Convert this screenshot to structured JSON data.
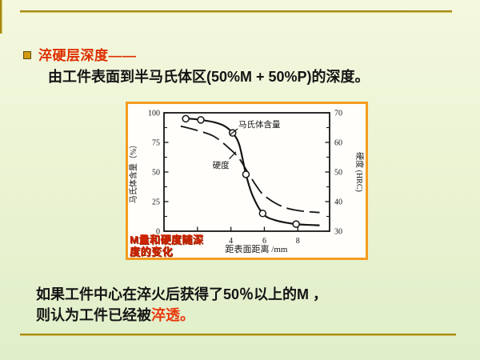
{
  "slide": {
    "title": "淬硬层深度——",
    "definition": "由工件表面到半马氏体区(50%M + 50%P)的深度。",
    "body_line1": "如果工件中心在淬火后获得了50％以上的M ，",
    "body_line2_prefix": "则认为工件已经被",
    "body_line2_highlight": "淬透。"
  },
  "figure": {
    "caption_line1": "M量和硬度随深",
    "caption_line2": "度的变化"
  },
  "chart_data": {
    "type": "line",
    "title": "",
    "xlabel": "距表面距离 /mm",
    "ylabel_left": "马氏体含量（%）",
    "ylabel_right": "硬度 (HRC)",
    "xlim": [
      0,
      9.9
    ],
    "ylim_left": [
      0,
      100
    ],
    "ylim_right": [
      30,
      70
    ],
    "x_ticks": [
      2,
      4,
      6,
      8
    ],
    "x_ticks_labeled": [
      4,
      6,
      8
    ],
    "y_ticks_left": [
      0,
      25,
      50,
      75,
      100
    ],
    "y_ticks_left_minor": [
      12.5,
      37.5,
      62.5,
      87.5
    ],
    "y_ticks_right": [
      30,
      40,
      50,
      60,
      70
    ],
    "y_ticks_right_minor": [
      35,
      45,
      55,
      65
    ],
    "grid": false,
    "legend": "inline-annotations",
    "series": [
      {
        "name": "马氏体含量",
        "axis": "left",
        "style": "solid",
        "points": [
          [
            1.2,
            95.5
          ],
          [
            2.2,
            94
          ],
          [
            3,
            92
          ],
          [
            3.6,
            89
          ],
          [
            4.1,
            83
          ],
          [
            4.5,
            73
          ],
          [
            4.9,
            48
          ],
          [
            5.3,
            30
          ],
          [
            5.9,
            15
          ],
          [
            6.6,
            9.5
          ],
          [
            7.9,
            6
          ],
          [
            9.3,
            5
          ]
        ],
        "markers": [
          [
            1.3,
            95
          ],
          [
            2.2,
            94
          ],
          [
            4.1,
            83
          ],
          [
            4.9,
            48
          ],
          [
            5.9,
            15
          ],
          [
            7.9,
            6
          ]
        ]
      },
      {
        "name": "硬度",
        "axis": "right",
        "style": "dashed",
        "points": [
          [
            1,
            65.5
          ],
          [
            2,
            64
          ],
          [
            3,
            62
          ],
          [
            4,
            57.5
          ],
          [
            4.5,
            54.5
          ],
          [
            5,
            50
          ],
          [
            5.5,
            45.5
          ],
          [
            6,
            42
          ],
          [
            7,
            38.5
          ],
          [
            8,
            37
          ],
          [
            9.3,
            36.3
          ]
        ]
      }
    ],
    "annotations": [
      {
        "text": "马氏体含量",
        "tx": 4.45,
        "ty": 88,
        "leader": [
          4.4,
          86.5,
          3.95,
          81.5
        ]
      },
      {
        "text": "硬度",
        "tx": 2.9,
        "ty": 53.5,
        "leader": [
          3.9,
          61,
          4.3,
          67
        ]
      }
    ]
  },
  "colors": {
    "title_red": "#dd2f00",
    "highlight_red": "#e8380d",
    "caption_red": "#d42300",
    "figure_border": "#f49c1f",
    "gold_line": "#b2941a",
    "text_black": "#141414"
  }
}
